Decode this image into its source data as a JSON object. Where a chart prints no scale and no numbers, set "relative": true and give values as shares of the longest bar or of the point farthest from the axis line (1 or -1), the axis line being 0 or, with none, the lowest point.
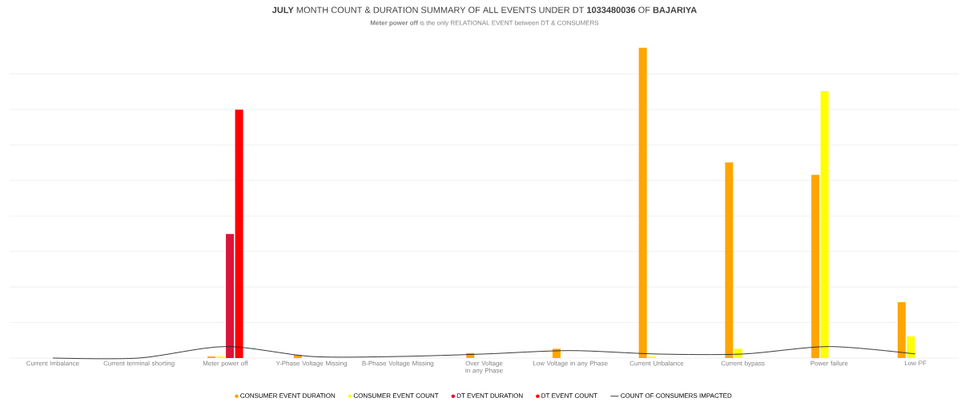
{
  "chart_data": {
    "type": "bar",
    "title": "**JULY** MONTH COUNT & DURATION SUMMARY OF ALL EVENTS UNDER DT **1033480036** OF **BAJARIYA**",
    "subtitle": "**Meter power off** is the only RELATIONAL EVENT between DT & CONSUMERS",
    "relative": true,
    "grid": "y",
    "legend": "bottom",
    "categories": [
      "Current Imbalance",
      "Current terminal shorting",
      "Meter power off",
      "Y-Phase Voltage Missing",
      "B-Phase Voltage Missing",
      "Over Voltage in any Phase",
      "Low Voltage in any Phase",
      "Current Unbalance",
      "Current bypass",
      "Power failure",
      "Low PF"
    ],
    "series": [
      {
        "name": "CONSUMER EVENT DURATION",
        "color": "#ffa500",
        "values": [
          0,
          0,
          0.005,
          0.01,
          0,
          0.016,
          0.03,
          1,
          0.63,
          0.59,
          0.18
        ]
      },
      {
        "name": "CONSUMER EVENT COUNT",
        "color": "#ffff00",
        "values": [
          0,
          0,
          0.005,
          0,
          0,
          0,
          0,
          0.005,
          0.03,
          0.86,
          0.07
        ]
      },
      {
        "name": "DT EVENT DURATION",
        "color": "#dc143c",
        "values": [
          0,
          0,
          0.4,
          0,
          0,
          0,
          0,
          0,
          0,
          0,
          0
        ]
      },
      {
        "name": "DT EVENT COUNT",
        "color": "#ff0000",
        "values": [
          0,
          0,
          0.8,
          0,
          0,
          0,
          0,
          0,
          0,
          0,
          0
        ]
      },
      {
        "name": "COUNT OF CONSUMERS IMPACTED",
        "color": "#222222",
        "type": "line",
        "values": [
          0,
          0,
          0.037,
          0.005,
          0.005,
          0.013,
          0.024,
          0.013,
          0.013,
          0.037,
          0.013
        ]
      }
    ]
  }
}
